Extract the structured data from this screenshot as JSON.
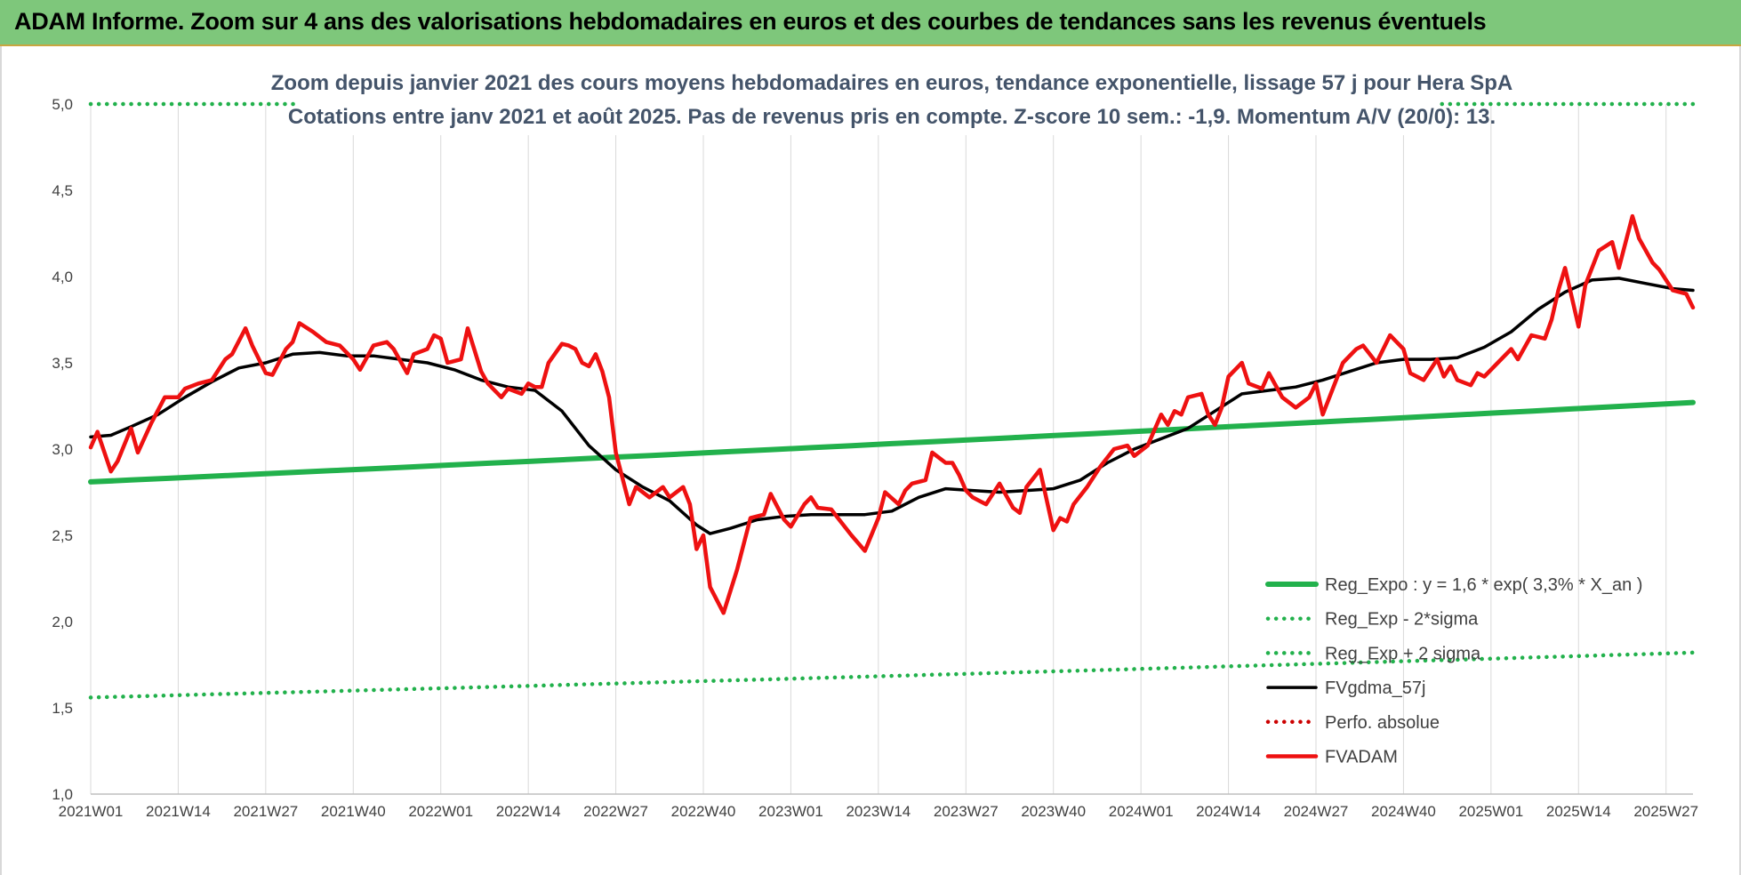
{
  "header": {
    "title": "ADAM Informe. Zoom sur 4 ans des valorisations hebdomadaires en euros et des courbes de tendances sans les revenus éventuels"
  },
  "chart_data": {
    "type": "line",
    "title_line1": "Zoom depuis janvier 2021 des cours moyens hebdomadaires en euros, tendance exponentielle, lissage 57 j pour Hera SpA",
    "title_line2": "Cotations entre janv 2021 et août 2025.  Pas de revenus pris en compte. Z-score 10 sem.: -1,9. Momentum A/V (20/0): 13.",
    "ylim": [
      1.0,
      5.0
    ],
    "y_ticks": [
      "1,0",
      "1,5",
      "2,0",
      "2,5",
      "3,0",
      "3,5",
      "4,0",
      "4,5",
      "5,0"
    ],
    "x_ticks": [
      "2021W01",
      "2021W14",
      "2021W27",
      "2021W40",
      "2022W01",
      "2022W14",
      "2022W27",
      "2022W40",
      "2023W01",
      "2023W14",
      "2023W27",
      "2023W40",
      "2024W01",
      "2024W14",
      "2024W27",
      "2024W40",
      "2025W01",
      "2025W14",
      "2025W27"
    ],
    "x_tick_weeks": [
      0,
      13,
      26,
      39,
      52,
      65,
      78,
      91,
      104,
      117,
      130,
      143,
      156,
      169,
      182,
      195,
      208,
      221,
      234
    ],
    "total_weeks": 238,
    "grid": "vertical",
    "legend_position": "bottom-right",
    "colors": {
      "reg_expo": "#22b14c",
      "fvgdma": "#000000",
      "fvadam": "#ee1111",
      "perfo": "#cc0000",
      "header_bg": "#7ec77b",
      "subtitle": "#44546a"
    },
    "series": [
      {
        "name": "Reg_Expo : y = 1,6 * exp( 3,3% *  X_an )",
        "style": "solid-thick",
        "color": "#22b14c",
        "x": [
          0,
          238
        ],
        "values": [
          2.81,
          3.27
        ]
      },
      {
        "name": "Reg_Exp - 2*sigma",
        "style": "dotted",
        "color": "#22b14c",
        "x": [
          0,
          238
        ],
        "values": [
          1.56,
          1.82
        ]
      },
      {
        "name": "Reg_Exp + 2 sigma",
        "style": "dotted",
        "color": "#22b14c",
        "x": [
          0,
          238
        ],
        "values": [
          5.0,
          5.0
        ],
        "hidden_under_title": true
      },
      {
        "name": "FVgdma_57j",
        "style": "solid",
        "color": "#000000",
        "x": [
          0,
          3,
          6,
          10,
          14,
          18,
          22,
          26,
          30,
          34,
          38,
          42,
          46,
          50,
          54,
          58,
          62,
          66,
          70,
          74,
          78,
          82,
          86,
          90,
          92,
          95,
          99,
          103,
          107,
          111,
          115,
          119,
          123,
          127,
          131,
          135,
          139,
          143,
          147,
          151,
          155,
          159,
          163,
          167,
          171,
          175,
          179,
          183,
          187,
          191,
          195,
          199,
          203,
          207,
          211,
          215,
          219,
          223,
          227,
          231,
          235,
          238
        ],
        "values": [
          3.07,
          3.08,
          3.13,
          3.2,
          3.3,
          3.39,
          3.47,
          3.5,
          3.55,
          3.56,
          3.54,
          3.54,
          3.52,
          3.5,
          3.46,
          3.4,
          3.36,
          3.34,
          3.22,
          3.02,
          2.88,
          2.78,
          2.7,
          2.56,
          2.51,
          2.54,
          2.59,
          2.61,
          2.62,
          2.62,
          2.62,
          2.64,
          2.72,
          2.77,
          2.76,
          2.75,
          2.76,
          2.77,
          2.82,
          2.92,
          3.0,
          3.06,
          3.12,
          3.22,
          3.32,
          3.34,
          3.36,
          3.4,
          3.45,
          3.5,
          3.52,
          3.52,
          3.53,
          3.59,
          3.68,
          3.81,
          3.91,
          3.98,
          3.99,
          3.96,
          3.93,
          3.92
        ]
      },
      {
        "name": "Perfo. absolue",
        "style": "dotted",
        "color": "#cc0000",
        "x": [],
        "values": []
      },
      {
        "name": "FVADAM",
        "style": "solid-thick",
        "color": "#ee1111",
        "x": [
          0,
          1,
          3,
          4,
          6,
          7,
          9,
          11,
          13,
          14,
          16,
          18,
          20,
          21,
          23,
          24,
          26,
          27,
          29,
          30,
          31,
          33,
          35,
          37,
          39,
          40,
          42,
          44,
          45,
          47,
          48,
          50,
          51,
          52,
          53,
          55,
          56,
          58,
          59,
          61,
          62,
          64,
          65,
          66,
          67,
          68,
          70,
          71,
          72,
          73,
          74,
          75,
          76,
          77,
          78,
          80,
          81,
          83,
          85,
          86,
          88,
          89,
          90,
          91,
          92,
          94,
          96,
          98,
          100,
          101,
          103,
          104,
          106,
          107,
          108,
          110,
          111,
          113,
          115,
          117,
          118,
          120,
          121,
          122,
          124,
          125,
          127,
          128,
          129,
          130,
          131,
          132,
          133,
          135,
          137,
          138,
          139,
          141,
          143,
          144,
          145,
          146,
          148,
          150,
          152,
          154,
          155,
          157,
          159,
          160,
          161,
          162,
          163,
          165,
          166,
          167,
          168,
          169,
          171,
          172,
          174,
          175,
          177,
          179,
          181,
          182,
          183,
          185,
          186,
          188,
          189,
          191,
          193,
          195,
          196,
          198,
          200,
          201,
          202,
          203,
          205,
          206,
          207,
          209,
          211,
          212,
          214,
          216,
          217,
          218,
          219,
          221,
          222,
          224,
          226,
          227,
          228,
          229,
          230,
          231,
          232,
          233,
          235,
          237,
          238
        ],
        "values": [
          3.01,
          3.1,
          2.87,
          2.93,
          3.12,
          2.98,
          3.15,
          3.3,
          3.3,
          3.35,
          3.38,
          3.4,
          3.52,
          3.55,
          3.7,
          3.6,
          3.44,
          3.43,
          3.58,
          3.62,
          3.73,
          3.68,
          3.62,
          3.6,
          3.52,
          3.46,
          3.6,
          3.62,
          3.58,
          3.44,
          3.55,
          3.58,
          3.66,
          3.64,
          3.5,
          3.52,
          3.7,
          3.45,
          3.38,
          3.3,
          3.35,
          3.32,
          3.38,
          3.36,
          3.36,
          3.5,
          3.61,
          3.6,
          3.58,
          3.5,
          3.48,
          3.55,
          3.45,
          3.3,
          2.98,
          2.68,
          2.78,
          2.72,
          2.78,
          2.72,
          2.78,
          2.68,
          2.42,
          2.5,
          2.2,
          2.05,
          2.3,
          2.6,
          2.62,
          2.74,
          2.59,
          2.55,
          2.68,
          2.72,
          2.66,
          2.65,
          2.6,
          2.5,
          2.41,
          2.6,
          2.75,
          2.68,
          2.76,
          2.8,
          2.82,
          2.98,
          2.92,
          2.92,
          2.85,
          2.76,
          2.72,
          2.7,
          2.68,
          2.8,
          2.66,
          2.63,
          2.78,
          2.88,
          2.53,
          2.6,
          2.58,
          2.68,
          2.78,
          2.9,
          3.0,
          3.02,
          2.96,
          3.02,
          3.2,
          3.14,
          3.22,
          3.2,
          3.3,
          3.32,
          3.2,
          3.14,
          3.24,
          3.42,
          3.5,
          3.38,
          3.35,
          3.44,
          3.3,
          3.24,
          3.3,
          3.38,
          3.2,
          3.4,
          3.5,
          3.58,
          3.6,
          3.5,
          3.66,
          3.58,
          3.44,
          3.4,
          3.52,
          3.42,
          3.48,
          3.4,
          3.37,
          3.44,
          3.42,
          3.5,
          3.58,
          3.52,
          3.66,
          3.64,
          3.75,
          3.92,
          4.05,
          3.71,
          3.95,
          4.15,
          4.2,
          4.05,
          4.2,
          4.35,
          4.22,
          4.15,
          4.08,
          4.04,
          3.92,
          3.9,
          3.82
        ]
      }
    ]
  }
}
